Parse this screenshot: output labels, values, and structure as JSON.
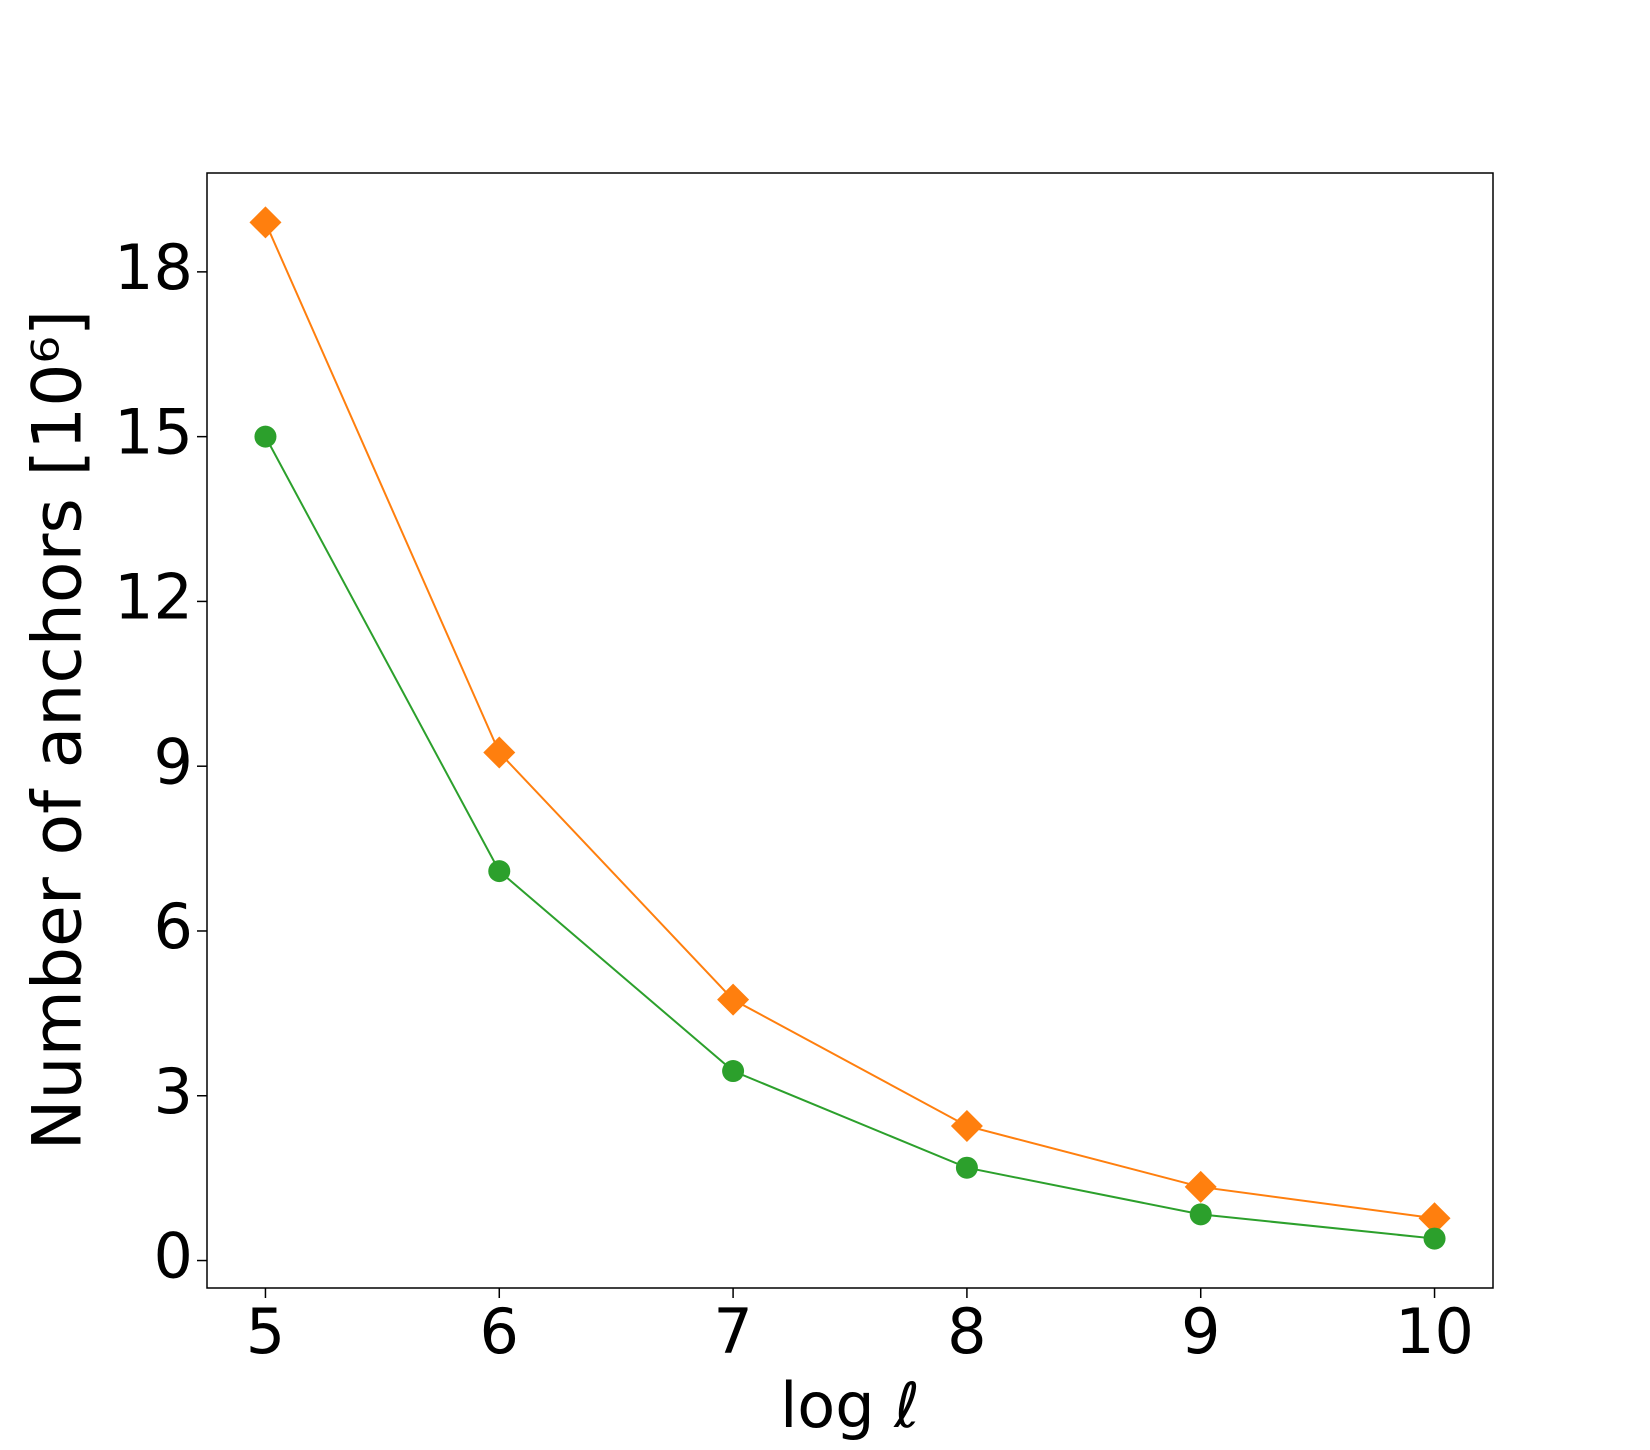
{
  "chart_data": {
    "type": "line",
    "xlabel": "log ℓ",
    "ylabel": "Number of anchors [10⁶]",
    "x": [
      5,
      6,
      7,
      8,
      9,
      10
    ],
    "series": [
      {
        "color": "#ff7f0e",
        "marker": "diamond",
        "values": [
          18.9,
          9.25,
          4.75,
          2.45,
          1.34,
          0.77
        ]
      },
      {
        "color": "#2ca02c",
        "marker": "circle",
        "values": [
          15.0,
          7.09,
          3.45,
          1.69,
          0.84,
          0.4
        ]
      }
    ],
    "xlim": [
      4.75,
      10.25
    ],
    "xticks": [
      5,
      6,
      7,
      8,
      9,
      10
    ],
    "ylim": [
      -0.5,
      19.8
    ],
    "yticks": [
      0,
      3,
      6,
      9,
      12,
      15,
      18
    ],
    "grid": false
  }
}
